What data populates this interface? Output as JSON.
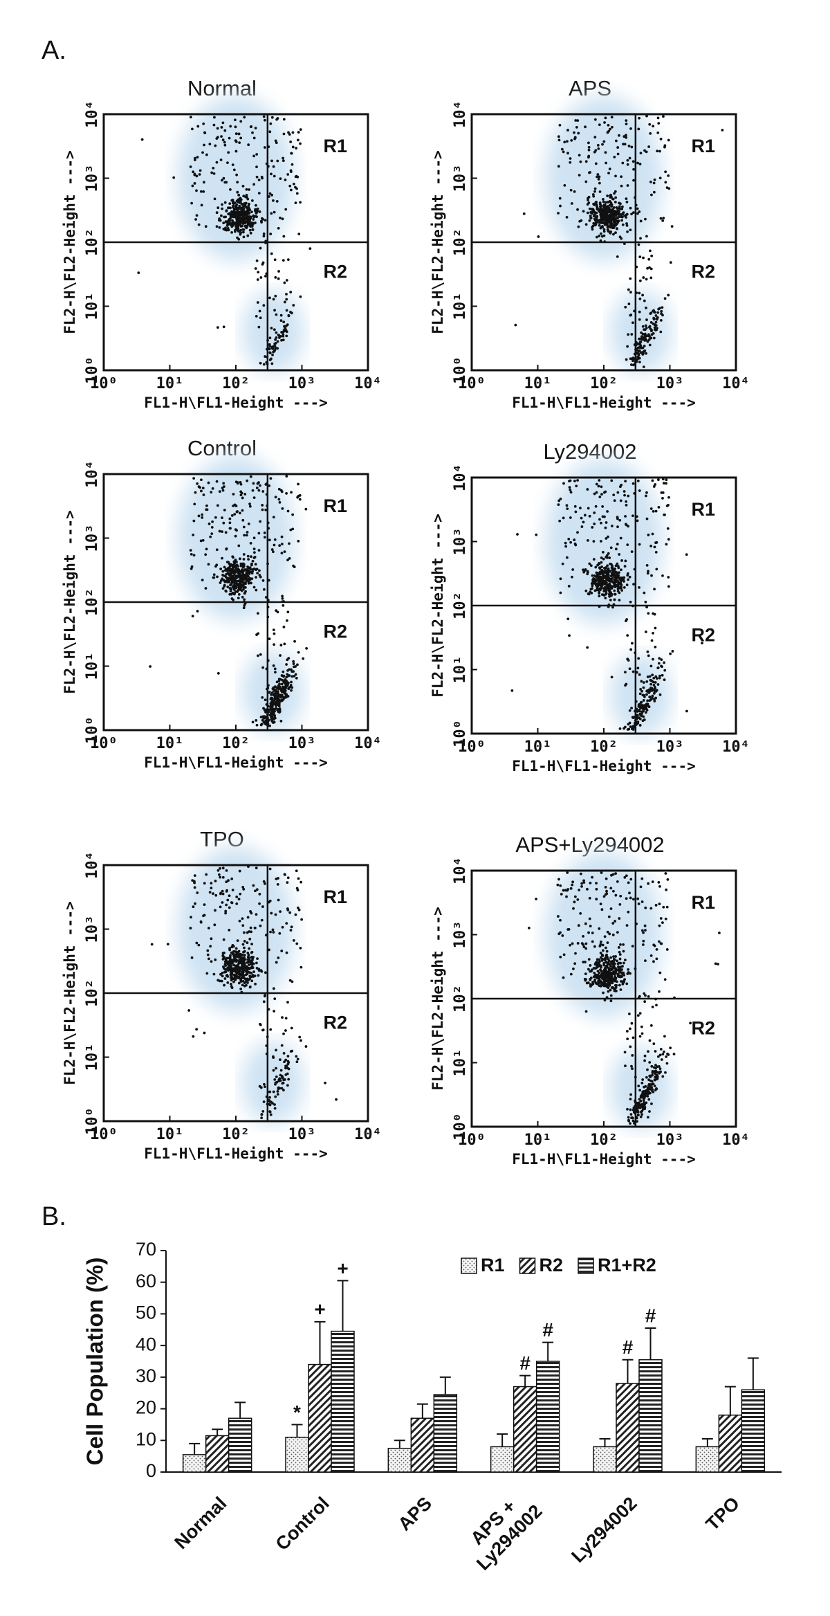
{
  "panel_labels": [
    "A.",
    "B."
  ],
  "chart_data": [
    {
      "type": "scatter",
      "title": "Normal",
      "xlabel": "FL1-H\\FL1-Height --->",
      "ylabel": "FL2-H\\FL2-Height --->",
      "annotations": [
        "R1",
        "R2"
      ],
      "log_scale": true,
      "xlim": [
        1,
        10000
      ],
      "ylim": [
        1,
        10000
      ],
      "xticks": [
        {
          "value": 1,
          "label": "10⁰"
        },
        {
          "value": 10,
          "label": "10¹"
        },
        {
          "value": 100,
          "label": "10²"
        },
        {
          "value": 1000,
          "label": "10³"
        },
        {
          "value": 10000,
          "label": "10⁴"
        }
      ],
      "yticks": [
        {
          "value": 1,
          "label": "10⁰"
        },
        {
          "value": 10,
          "label": "10¹"
        },
        {
          "value": 100,
          "label": "10²"
        },
        {
          "value": 1000,
          "label": "10³"
        },
        {
          "value": 10000,
          "label": "10⁴"
        }
      ]
    },
    {
      "type": "scatter",
      "title": "APS",
      "xlabel": "FL1-H\\FL1-Height --->",
      "ylabel": "FL2-H\\FL2-Height --->",
      "annotations": [
        "R1",
        "R2"
      ],
      "log_scale": true,
      "xlim": [
        1,
        10000
      ],
      "ylim": [
        1,
        10000
      ],
      "xticks": [
        {
          "value": 1,
          "label": "10⁰"
        },
        {
          "value": 10,
          "label": "10¹"
        },
        {
          "value": 100,
          "label": "10²"
        },
        {
          "value": 1000,
          "label": "10³"
        },
        {
          "value": 10000,
          "label": "10⁴"
        }
      ],
      "yticks": [
        {
          "value": 1,
          "label": "10⁰"
        },
        {
          "value": 10,
          "label": "10¹"
        },
        {
          "value": 100,
          "label": "10²"
        },
        {
          "value": 1000,
          "label": "10³"
        },
        {
          "value": 10000,
          "label": "10⁴"
        }
      ]
    },
    {
      "type": "scatter",
      "title": "Control",
      "xlabel": "FL1-H\\FL1-Height --->",
      "ylabel": "FL2-H\\FL2-Height --->",
      "annotations": [
        "R1",
        "R2"
      ],
      "log_scale": true,
      "xlim": [
        1,
        10000
      ],
      "ylim": [
        1,
        10000
      ],
      "xticks": [
        {
          "value": 1,
          "label": "10⁰"
        },
        {
          "value": 10,
          "label": "10¹"
        },
        {
          "value": 100,
          "label": "10²"
        },
        {
          "value": 1000,
          "label": "10³"
        },
        {
          "value": 10000,
          "label": "10⁴"
        }
      ],
      "yticks": [
        {
          "value": 1,
          "label": "10⁰"
        },
        {
          "value": 10,
          "label": "10¹"
        },
        {
          "value": 100,
          "label": "10²"
        },
        {
          "value": 1000,
          "label": "10³"
        },
        {
          "value": 10000,
          "label": "10⁴"
        }
      ]
    },
    {
      "type": "scatter",
      "title": "Ly294002",
      "xlabel": "FL1-H\\FL1-Height --->",
      "ylabel": "FL2-H\\FL2-Height --->",
      "annotations": [
        "R1",
        "R2"
      ],
      "log_scale": true,
      "xlim": [
        1,
        10000
      ],
      "ylim": [
        1,
        10000
      ],
      "xticks": [
        {
          "value": 1,
          "label": "10⁰"
        },
        {
          "value": 10,
          "label": "10¹"
        },
        {
          "value": 100,
          "label": "10²"
        },
        {
          "value": 1000,
          "label": "10³"
        },
        {
          "value": 10000,
          "label": "10⁴"
        }
      ],
      "yticks": [
        {
          "value": 1,
          "label": "10⁰"
        },
        {
          "value": 10,
          "label": "10¹"
        },
        {
          "value": 100,
          "label": "10²"
        },
        {
          "value": 1000,
          "label": "10³"
        },
        {
          "value": 10000,
          "label": "10⁴"
        }
      ]
    },
    {
      "type": "scatter",
      "title": "TPO",
      "xlabel": "FL1-H\\FL1-Height --->",
      "ylabel": "FL2-H\\FL2-Height --->",
      "annotations": [
        "R1",
        "R2"
      ],
      "log_scale": true,
      "xlim": [
        1,
        10000
      ],
      "ylim": [
        1,
        10000
      ],
      "xticks": [
        {
          "value": 1,
          "label": "10⁰"
        },
        {
          "value": 10,
          "label": "10¹"
        },
        {
          "value": 100,
          "label": "10²"
        },
        {
          "value": 1000,
          "label": "10³"
        },
        {
          "value": 10000,
          "label": "10⁴"
        }
      ],
      "yticks": [
        {
          "value": 1,
          "label": "10⁰"
        },
        {
          "value": 10,
          "label": "10¹"
        },
        {
          "value": 100,
          "label": "10²"
        },
        {
          "value": 1000,
          "label": "10³"
        },
        {
          "value": 10000,
          "label": "10⁴"
        }
      ]
    },
    {
      "type": "scatter",
      "title": "APS+Ly294002",
      "xlabel": "FL1-H\\FL1-Height --->",
      "ylabel": "FL2-H\\FL2-Height --->",
      "annotations": [
        "R1",
        "R2"
      ],
      "log_scale": true,
      "xlim": [
        1,
        10000
      ],
      "ylim": [
        1,
        10000
      ],
      "xticks": [
        {
          "value": 1,
          "label": "10⁰"
        },
        {
          "value": 10,
          "label": "10¹"
        },
        {
          "value": 100,
          "label": "10²"
        },
        {
          "value": 1000,
          "label": "10³"
        },
        {
          "value": 10000,
          "label": "10⁴"
        }
      ],
      "yticks": [
        {
          "value": 1,
          "label": "10⁰"
        },
        {
          "value": 10,
          "label": "10¹"
        },
        {
          "value": 100,
          "label": "10²"
        },
        {
          "value": 1000,
          "label": "10³"
        },
        {
          "value": 10000,
          "label": "10⁴"
        }
      ]
    },
    {
      "type": "bar",
      "ylabel": "Cell Population (%)",
      "categories": [
        "Normal",
        "Control",
        "APS",
        "APS +\nLy294002",
        "Ly294002",
        "TPO"
      ],
      "ylim": [
        0,
        70
      ],
      "yticks": [
        0,
        10,
        20,
        30,
        40,
        50,
        60,
        70
      ],
      "series": [
        {
          "name": "R1",
          "pattern": "dots",
          "values": [
            5.5,
            11,
            7.5,
            8,
            8,
            8
          ],
          "errors": [
            3.5,
            4,
            2.5,
            4,
            2.5,
            2.5
          ],
          "markers": [
            null,
            "*",
            null,
            null,
            null,
            null
          ]
        },
        {
          "name": "R2",
          "pattern": "diagonal",
          "values": [
            11.5,
            34,
            17,
            27,
            28,
            18
          ],
          "errors": [
            2,
            13.5,
            4.5,
            3.5,
            7.5,
            9
          ],
          "markers": [
            null,
            "+",
            null,
            "#",
            "#",
            null
          ]
        },
        {
          "name": "R1+R2",
          "pattern": "horizontal",
          "values": [
            17,
            44.5,
            24.5,
            35,
            35.5,
            26
          ],
          "errors": [
            5,
            16,
            5.5,
            6,
            10,
            10
          ],
          "markers": [
            null,
            "+",
            null,
            "#",
            "#",
            null
          ]
        }
      ]
    }
  ]
}
